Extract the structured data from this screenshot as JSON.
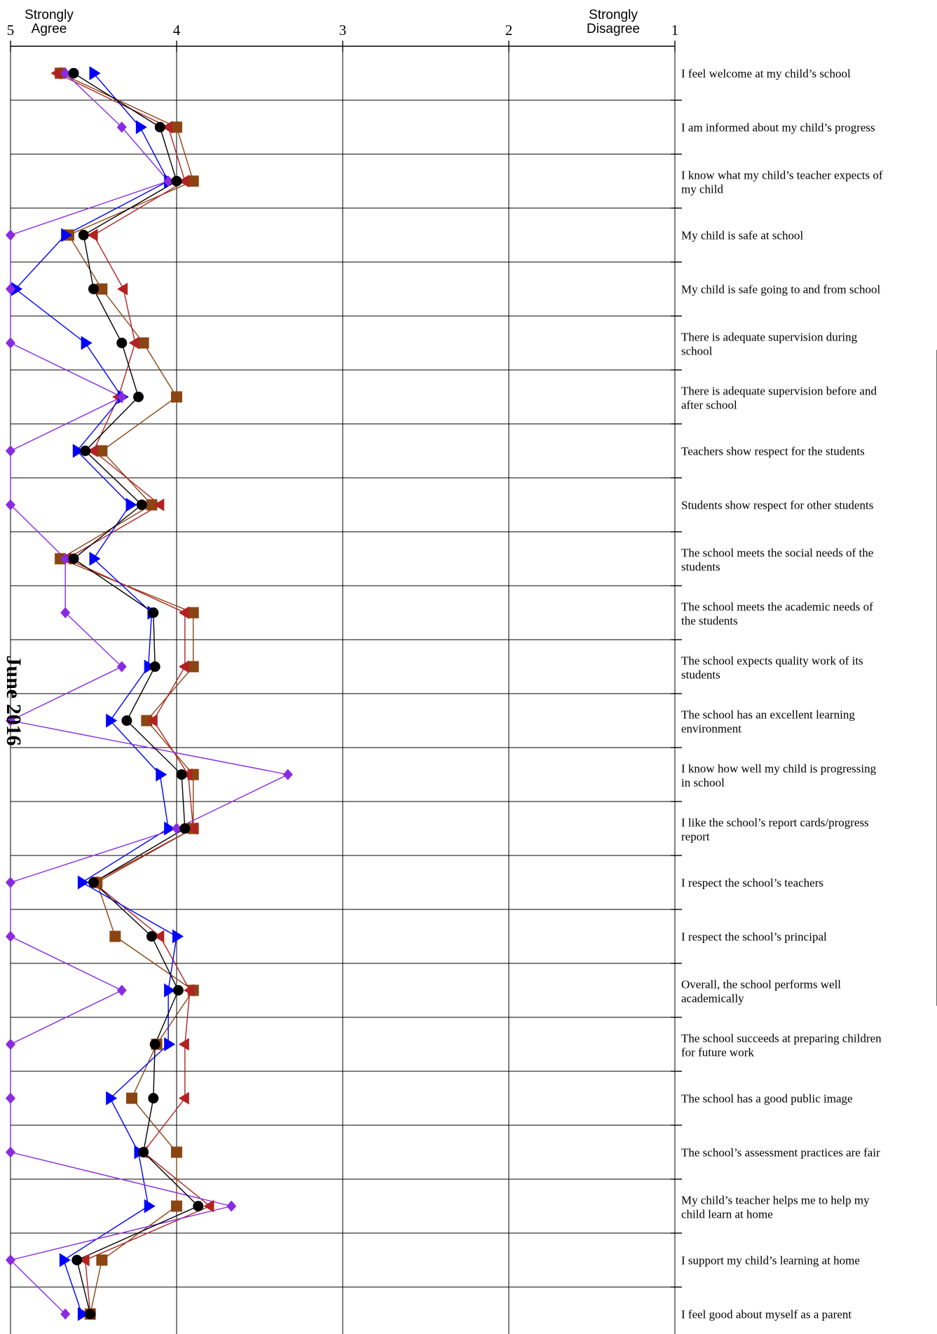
{
  "chart_data": {
    "type": "line",
    "orientation": "horizontal",
    "x_axis": {
      "reversed": true,
      "range": [
        5,
        1
      ],
      "ticks": [
        "5",
        "4",
        "3",
        "2",
        "1"
      ],
      "tick_values": [
        5,
        4,
        3,
        2,
        1
      ],
      "left_anchor": [
        "Strongly",
        "Agree"
      ],
      "right_anchor": [
        "Strongly",
        "Disagree"
      ]
    },
    "side_label": "June 2016",
    "grid": true,
    "legend": "none",
    "categories": [
      [
        "I feel welcome at my child’s school"
      ],
      [
        "I am informed about my child’s progress"
      ],
      [
        "I know what my child’s teacher expects of",
        "my child"
      ],
      [
        "My child is safe at school"
      ],
      [
        "My child is safe going to and from school"
      ],
      [
        "There is adequate supervision during",
        "school"
      ],
      [
        "There is adequate supervision before and",
        "after school"
      ],
      [
        "Teachers show respect for the students"
      ],
      [
        "Students show respect for other students"
      ],
      [
        "The school meets the social needs of the",
        "students"
      ],
      [
        "The school meets the academic needs of",
        "the students"
      ],
      [
        "The school expects quality work of its",
        "students"
      ],
      [
        "The school has an excellent learning",
        "environment"
      ],
      [
        "I know how well my child is progressing",
        "in school"
      ],
      [
        "I like the school’s report cards/progress",
        "report"
      ],
      [
        "I respect the school’s teachers"
      ],
      [
        "I respect the school’s principal"
      ],
      [
        "Overall, the school performs well",
        "academically"
      ],
      [
        "The school succeeds at preparing children",
        "for future work"
      ],
      [
        "The school has a good public image"
      ],
      [
        "The school’s assessment practices are fair"
      ],
      [
        "My child’s teacher helps me to help my",
        "child learn at home"
      ],
      [
        "I support my child’s learning at home"
      ],
      [
        "I feel good about myself as a parent"
      ]
    ],
    "series": [
      {
        "marker": "square",
        "color": "#8B4513",
        "values": [
          4.7,
          4.0,
          3.9,
          4.65,
          4.45,
          4.2,
          4.0,
          4.45,
          4.15,
          4.7,
          3.9,
          3.9,
          4.18,
          3.9,
          3.9,
          4.48,
          4.37,
          3.9,
          4.12,
          4.27,
          4.0,
          4.0,
          4.45,
          4.52
        ]
      },
      {
        "marker": "triangle-left",
        "color": "#B22222",
        "values": [
          4.72,
          4.05,
          3.95,
          4.5,
          4.32,
          4.25,
          4.35,
          4.5,
          4.1,
          4.66,
          3.95,
          3.95,
          4.14,
          3.93,
          3.9,
          4.5,
          4.1,
          3.92,
          3.95,
          3.95,
          4.2,
          3.8,
          4.55,
          4.52
        ]
      },
      {
        "marker": "triangle-right",
        "color": "#0000FF",
        "values": [
          4.5,
          4.22,
          4.05,
          4.67,
          4.97,
          4.55,
          4.33,
          4.6,
          4.28,
          4.5,
          4.15,
          4.17,
          4.4,
          4.1,
          4.05,
          4.57,
          4.0,
          4.05,
          4.05,
          4.4,
          4.23,
          4.17,
          4.68,
          4.57
        ]
      },
      {
        "marker": "diamond",
        "color": "#8A2BE2",
        "values": [
          4.67,
          4.33,
          4.05,
          5.0,
          5.0,
          5.0,
          4.33,
          5.0,
          5.0,
          4.67,
          4.67,
          4.33,
          5.0,
          3.33,
          4.0,
          5.0,
          5.0,
          4.33,
          5.0,
          5.0,
          5.0,
          3.67,
          5.0,
          4.67
        ]
      },
      {
        "marker": "circle",
        "color": "#000000",
        "values": [
          4.62,
          4.1,
          4.0,
          4.56,
          4.5,
          4.33,
          4.23,
          4.55,
          4.21,
          4.62,
          4.14,
          4.13,
          4.3,
          3.97,
          3.95,
          4.5,
          4.15,
          3.99,
          4.13,
          4.14,
          4.2,
          3.87,
          4.6,
          4.52
        ]
      }
    ]
  }
}
